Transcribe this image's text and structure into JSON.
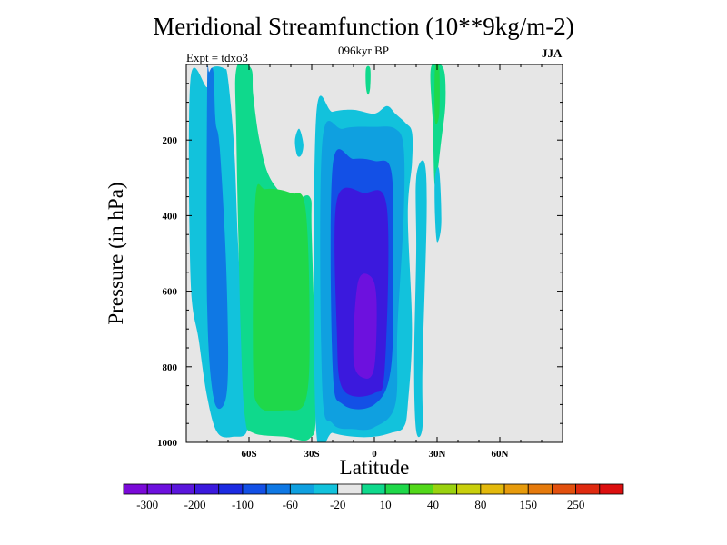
{
  "chart_data": {
    "type": "heatmap",
    "title": "Meridional Streamfunction (10**9kg/m-2)",
    "subtitle": "096kyr BP",
    "left_annotation": "Expt = tdxo3",
    "right_annotation": "JJA",
    "xlabel": "Latitude",
    "ylabel": "Pressure (in hPa)",
    "x_ticks": [
      {
        "value": -60,
        "label": "60S"
      },
      {
        "value": -30,
        "label": "30S"
      },
      {
        "value": 0,
        "label": "0"
      },
      {
        "value": 30,
        "label": "30N"
      },
      {
        "value": 60,
        "label": "60N"
      }
    ],
    "y_ticks": [
      {
        "value": 200,
        "label": "200"
      },
      {
        "value": 400,
        "label": "400"
      },
      {
        "value": 600,
        "label": "600"
      },
      {
        "value": 800,
        "label": "800"
      },
      {
        "value": 1000,
        "label": "1000"
      }
    ],
    "xlim": [
      -90,
      90
    ],
    "ylim": [
      1000,
      0
    ],
    "background_color": "#e6e6e6",
    "colorbar": {
      "colors": [
        "#7a0ad8",
        "#6d11de",
        "#5a16dc",
        "#3b19dd",
        "#1c2be2",
        "#1350e6",
        "#0f78e4",
        "#0fa0e0",
        "#12c2dc",
        "#e6e6e6",
        "#0fd98c",
        "#1fd84a",
        "#52d81a",
        "#9ad20f",
        "#c9cf0c",
        "#e3b90c",
        "#e79b0c",
        "#e57a0c",
        "#e2500e",
        "#df2a10",
        "#dc0f0f"
      ],
      "labels": [
        "-300",
        "-200",
        "-100",
        "-60",
        "-20",
        "10",
        "40",
        "80",
        "150",
        "250"
      ]
    },
    "regions": [
      {
        "name": "SH-cell-outer-negative",
        "level": -20,
        "center_lat": -70,
        "points": [
          [
            -88,
            40
          ],
          [
            -80,
            60
          ],
          [
            -78,
            10
          ],
          [
            -72,
            10
          ],
          [
            -70,
            40
          ],
          [
            -67,
            230
          ],
          [
            -65,
            500
          ],
          [
            -61,
            870
          ],
          [
            -61,
            970
          ],
          [
            -67,
            985
          ],
          [
            -75,
            975
          ],
          [
            -80,
            880
          ],
          [
            -84,
            730
          ],
          [
            -88,
            560
          ]
        ]
      },
      {
        "name": "SH-cell-inner-negative",
        "level": -60,
        "center_lat": -73,
        "points": [
          [
            -80,
            60
          ],
          [
            -79,
            20
          ],
          [
            -77,
            20
          ],
          [
            -76,
            150
          ],
          [
            -74,
            220
          ],
          [
            -71,
            520
          ],
          [
            -70,
            800
          ],
          [
            -72,
            900
          ],
          [
            -77,
            880
          ],
          [
            -80,
            640
          ]
        ]
      },
      {
        "name": "ferrel-cell-positive",
        "level": 10,
        "center_lat": -45,
        "points": [
          [
            -66,
            10
          ],
          [
            -59,
            10
          ],
          [
            -58,
            80
          ],
          [
            -55,
            200
          ],
          [
            -50,
            300
          ],
          [
            -40,
            360
          ],
          [
            -31,
            350
          ],
          [
            -30,
            450
          ],
          [
            -28,
            900
          ],
          [
            -31,
            990
          ],
          [
            -43,
            985
          ],
          [
            -58,
            975
          ],
          [
            -62,
            930
          ],
          [
            -64,
            700
          ],
          [
            -66,
            200
          ]
        ]
      },
      {
        "name": "ferrel-cell-core-positive",
        "level": 40,
        "center_lat": -45,
        "points": [
          [
            -57,
            360
          ],
          [
            -52,
            330
          ],
          [
            -40,
            340
          ],
          [
            -33,
            380
          ],
          [
            -31,
            700
          ],
          [
            -33,
            890
          ],
          [
            -43,
            915
          ],
          [
            -55,
            905
          ],
          [
            -58,
            800
          ]
        ]
      },
      {
        "name": "hadley-cell-negative-20",
        "level": -20,
        "center_lat": 0,
        "points": [
          [
            -28,
            150
          ],
          [
            -20,
            125
          ],
          [
            -10,
            120
          ],
          [
            0,
            130
          ],
          [
            6,
            110
          ],
          [
            10,
            130
          ],
          [
            15,
            155
          ],
          [
            18,
            180
          ],
          [
            18,
            260
          ],
          [
            16,
            400
          ],
          [
            18,
            700
          ],
          [
            16,
            900
          ],
          [
            14,
            960
          ],
          [
            8,
            975
          ],
          [
            0,
            985
          ],
          [
            -10,
            985
          ],
          [
            -20,
            975
          ],
          [
            -28,
            955
          ]
        ]
      },
      {
        "name": "hadley-cell-negative-60",
        "level": -60,
        "center_lat": 0,
        "points": [
          [
            -25,
            210
          ],
          [
            -15,
            170
          ],
          [
            0,
            165
          ],
          [
            10,
            170
          ],
          [
            14,
            220
          ],
          [
            14,
            400
          ],
          [
            11,
            700
          ],
          [
            10,
            900
          ],
          [
            0,
            960
          ],
          [
            -10,
            965
          ],
          [
            -20,
            950
          ],
          [
            -25,
            850
          ]
        ]
      },
      {
        "name": "hadley-cell-negative-100",
        "level": -100,
        "center_lat": 0,
        "points": [
          [
            -20,
            270
          ],
          [
            -10,
            250
          ],
          [
            0,
            255
          ],
          [
            8,
            280
          ],
          [
            9,
            500
          ],
          [
            8,
            800
          ],
          [
            0,
            900
          ],
          [
            -15,
            900
          ],
          [
            -20,
            800
          ]
        ]
      },
      {
        "name": "hadley-cell-negative-200",
        "level": -200,
        "center_lat": -3,
        "points": [
          [
            -18,
            360
          ],
          [
            -5,
            340
          ],
          [
            6,
            380
          ],
          [
            5,
            800
          ],
          [
            0,
            870
          ],
          [
            -15,
            860
          ],
          [
            -18,
            700
          ]
        ]
      },
      {
        "name": "hadley-cell-core",
        "level": -300,
        "center_lat": -4,
        "points": [
          [
            -8,
            580
          ],
          [
            -2,
            560
          ],
          [
            1,
            620
          ],
          [
            0,
            800
          ],
          [
            -5,
            830
          ],
          [
            -10,
            780
          ]
        ]
      },
      {
        "name": "NH-equatorial-positive",
        "level": 10,
        "center_lat": -3,
        "points": [
          [
            -4,
            10
          ],
          [
            -2,
            10
          ],
          [
            -2,
            60
          ],
          [
            -3,
            80
          ],
          [
            -4,
            60
          ]
        ]
      },
      {
        "name": "NH-subtropical-negative",
        "level": -20,
        "center_lat": 22,
        "points": [
          [
            20,
            300
          ],
          [
            24,
            260
          ],
          [
            25,
            400
          ],
          [
            23,
            800
          ],
          [
            23,
            960
          ],
          [
            20,
            970
          ],
          [
            19,
            800
          ],
          [
            20,
            500
          ]
        ]
      },
      {
        "name": "NH-positive-20N",
        "level": 10,
        "center_lat": 30,
        "points": [
          [
            27,
            10
          ],
          [
            33,
            10
          ],
          [
            34,
            100
          ],
          [
            32,
            200
          ],
          [
            29,
            320
          ],
          [
            28,
            160
          ]
        ]
      },
      {
        "name": "NH-positive-core",
        "level": 40,
        "center_lat": 31,
        "points": [
          [
            29,
            10
          ],
          [
            31,
            10
          ],
          [
            31,
            130
          ],
          [
            29,
            150
          ]
        ]
      },
      {
        "name": "SH-small-negative",
        "level": -20,
        "center_lat": -36,
        "points": [
          [
            -38,
            200
          ],
          [
            -36,
            170
          ],
          [
            -34,
            210
          ],
          [
            -35,
            240
          ],
          [
            -37,
            240
          ]
        ]
      },
      {
        "name": "NH-thin-negative",
        "level": -20,
        "center_lat": 28,
        "points": [
          [
            29,
            300
          ],
          [
            31,
            280
          ],
          [
            32,
            420
          ],
          [
            30,
            470
          ],
          [
            29,
            400
          ]
        ]
      }
    ]
  }
}
